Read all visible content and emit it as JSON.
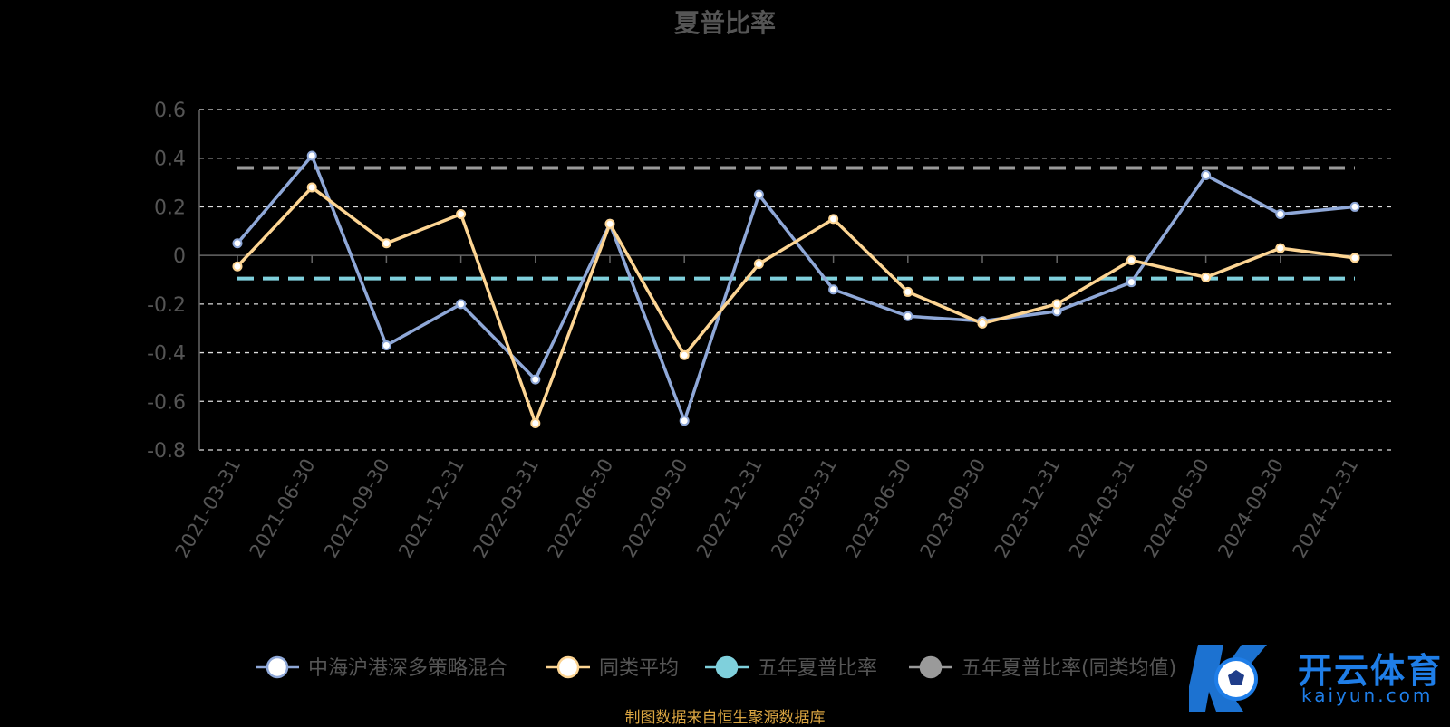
{
  "chart_data": {
    "type": "line",
    "title": "夏普比率",
    "categories": [
      "2021-03-31",
      "2021-06-30",
      "2021-09-30",
      "2021-12-31",
      "2022-03-31",
      "2022-06-30",
      "2022-09-30",
      "2022-12-31",
      "2023-03-31",
      "2023-06-30",
      "2023-09-30",
      "2023-12-31",
      "2024-03-31",
      "2024-06-30",
      "2024-09-30",
      "2024-12-31"
    ],
    "ylim": [
      -0.8,
      0.6
    ],
    "yticks": [
      "0.6",
      "0.4",
      "0.2",
      "0",
      "-0.2",
      "-0.4",
      "-0.6",
      "-0.8"
    ],
    "yticks_values": [
      0.6,
      0.4,
      0.2,
      0,
      -0.2,
      -0.4,
      -0.6,
      -0.8
    ],
    "grid": true,
    "legend_position": "bottom",
    "series": [
      {
        "name": "中海沪港深多策略混合",
        "color": "#8fa8d8",
        "values": [
          0.05,
          0.41,
          -0.37,
          -0.2,
          -0.51,
          0.13,
          -0.68,
          0.25,
          -0.14,
          -0.25,
          -0.27,
          -0.23,
          -0.11,
          0.33,
          0.17,
          0.2
        ]
      },
      {
        "name": "同类平均",
        "color": "#fdd593",
        "values": [
          -0.045,
          0.28,
          0.05,
          0.17,
          -0.69,
          0.13,
          -0.41,
          -0.035,
          0.15,
          -0.15,
          -0.28,
          -0.2,
          -0.02,
          -0.09,
          0.03,
          -0.01
        ]
      },
      {
        "name": "五年夏普比率",
        "color": "#7fd0dc",
        "dashed": true,
        "constant": -0.095
      },
      {
        "name": "五年夏普比率(同类均值)",
        "color": "#9a9a9a",
        "dashed": true,
        "constant": 0.36
      }
    ]
  },
  "footer": {
    "source": "制图数据来自恒生聚源数据库"
  },
  "watermark": {
    "text_cn": "开云体育",
    "text_en": "kaiyun.com",
    "icon": "soccer-ball-icon",
    "color": "#1f7ee8"
  }
}
